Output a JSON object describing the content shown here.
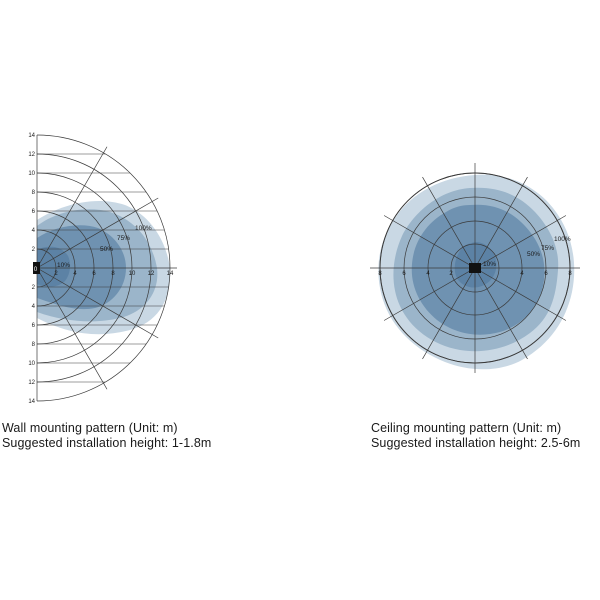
{
  "wall_pattern": {
    "x_ticks": [
      "2",
      "4",
      "6",
      "8",
      "10",
      "12",
      "14"
    ],
    "y_ticks_upper": [
      "2",
      "4",
      "6",
      "8",
      "10",
      "12",
      "14"
    ],
    "y_ticks_lower": [
      "2",
      "4",
      "6",
      "8",
      "10",
      "12",
      "14"
    ],
    "origin_label": "0",
    "zone_labels": [
      "10%",
      "50%",
      "75%",
      "100%"
    ],
    "caption_line1": "Wall mounting pattern (Unit: m)",
    "caption_line2": "Suggested installation height: 1-1.8m"
  },
  "ceiling_pattern": {
    "x_ticks_left": [
      "8",
      "6",
      "4",
      "2"
    ],
    "x_ticks_right": [
      "4",
      "6",
      "8"
    ],
    "zone_labels": [
      "10%",
      "50%",
      "75%",
      "100%"
    ],
    "caption_line1": "Ceiling  mounting pattern (Unit: m)",
    "caption_line2": "Suggested installation height: 2.5-6m"
  },
  "colors": {
    "zone_100": "#c9d8e4",
    "zone_75": "#9bb5ca",
    "zone_50": "#6f92b1",
    "zone_10": "#5c82a5",
    "grid": "#3a3a3a",
    "sensor": "#111111"
  }
}
